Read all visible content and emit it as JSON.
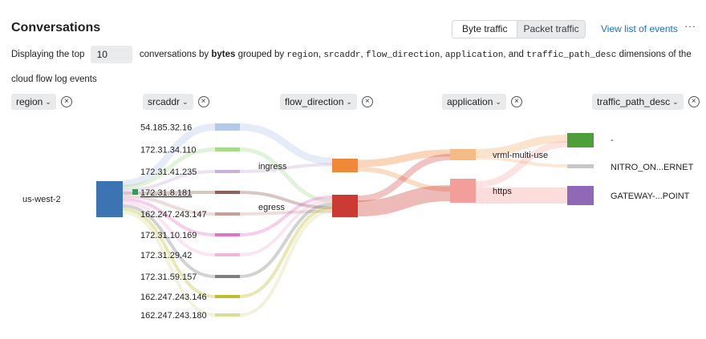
{
  "header": {
    "title": "Conversations",
    "tab_byte": "Byte traffic",
    "tab_packet": "Packet traffic",
    "view_events": "View list of events",
    "more": "···"
  },
  "description": {
    "prefix": "Displaying the top",
    "limit_value": "10",
    "mid": "conversations by",
    "metric": "bytes",
    "grouped": "grouped by",
    "dims": [
      "region",
      "srcaddr",
      "flow_direction",
      "application",
      "traffic_path_desc"
    ],
    "suffix": "dimensions of the cloud flow log events"
  },
  "dimension_filters": [
    "region",
    "srcaddr",
    "flow_direction",
    "application",
    "traffic_path_desc"
  ],
  "sankey": {
    "region": [
      {
        "label": "us-west-2",
        "color": "#3b73b3"
      }
    ],
    "srcaddr": [
      {
        "label": "54.185.32.16",
        "color": "#b4c9e8"
      },
      {
        "label": "172.31.34.110",
        "color": "#a6da8c"
      },
      {
        "label": "172.31.41.235",
        "color": "#c8b0d6"
      },
      {
        "label": "172.31.8.181",
        "color": "#8c5f57"
      },
      {
        "label": "162.247.243.147",
        "color": "#c79f98"
      },
      {
        "label": "172.31.10.169",
        "color": "#e073c6"
      },
      {
        "label": "172.31.29.42",
        "color": "#f1b4d8"
      },
      {
        "label": "172.31.59.157",
        "color": "#7f7f7f"
      },
      {
        "label": "162.247.243.146",
        "color": "#bdbd30"
      },
      {
        "label": "162.247.243.180",
        "color": "#dadd95"
      }
    ],
    "flow_direction": [
      {
        "label": "ingress",
        "color": "#f0883a"
      },
      {
        "label": "egress",
        "color": "#cc3a34"
      }
    ],
    "application": [
      {
        "label": "vrml-multi-use",
        "color": "#f5bb85"
      },
      {
        "label": "https",
        "color": "#f49e9b"
      }
    ],
    "traffic_path_desc": [
      {
        "label": "-",
        "color": "#4da039"
      },
      {
        "label": "NITRO_ON...ERNET",
        "color": "#c7c7c7"
      },
      {
        "label": "GATEWAY-...POINT",
        "color": "#8f68b8"
      }
    ],
    "selected_marker_color": "#2ca05a"
  }
}
